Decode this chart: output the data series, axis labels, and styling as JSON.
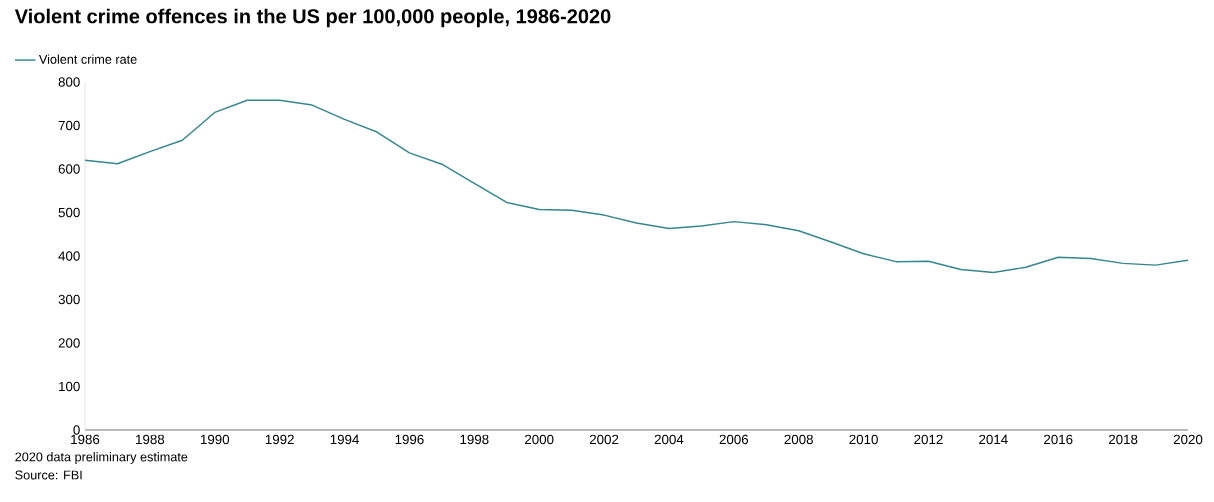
{
  "chart_data": {
    "type": "line",
    "title": "Violent crime offences in the US per 100,000 people, 1986-2020",
    "x": [
      1986,
      1987,
      1988,
      1989,
      1990,
      1991,
      1992,
      1993,
      1994,
      1995,
      1996,
      1997,
      1998,
      1999,
      2000,
      2001,
      2002,
      2003,
      2004,
      2005,
      2006,
      2007,
      2008,
      2009,
      2010,
      2011,
      2012,
      2013,
      2014,
      2015,
      2016,
      2017,
      2018,
      2019,
      2020
    ],
    "series": [
      {
        "name": "Violent crime rate",
        "color": "#35868f",
        "values": [
          620,
          612,
          640,
          666,
          730,
          758,
          758,
          747,
          714,
          685,
          637,
          611,
          567,
          523,
          507,
          505,
          494,
          476,
          463,
          469,
          479,
          472,
          458,
          432,
          405,
          387,
          388,
          369,
          362,
          374,
          397,
          394,
          383,
          379,
          390
        ]
      }
    ],
    "xlim": [
      1986,
      2020
    ],
    "xticks": [
      1986,
      1988,
      1990,
      1992,
      1994,
      1996,
      1998,
      2000,
      2002,
      2004,
      2006,
      2008,
      2010,
      2012,
      2014,
      2016,
      2018,
      2020
    ],
    "ylim": [
      0,
      800
    ],
    "yticks": [
      0,
      100,
      200,
      300,
      400,
      500,
      600,
      700,
      800
    ],
    "grid": false,
    "legend": "top left",
    "marker": "none",
    "line_style": "solid",
    "annotations": [
      "2020 data preliminary estimate",
      "Source: FBI"
    ]
  }
}
